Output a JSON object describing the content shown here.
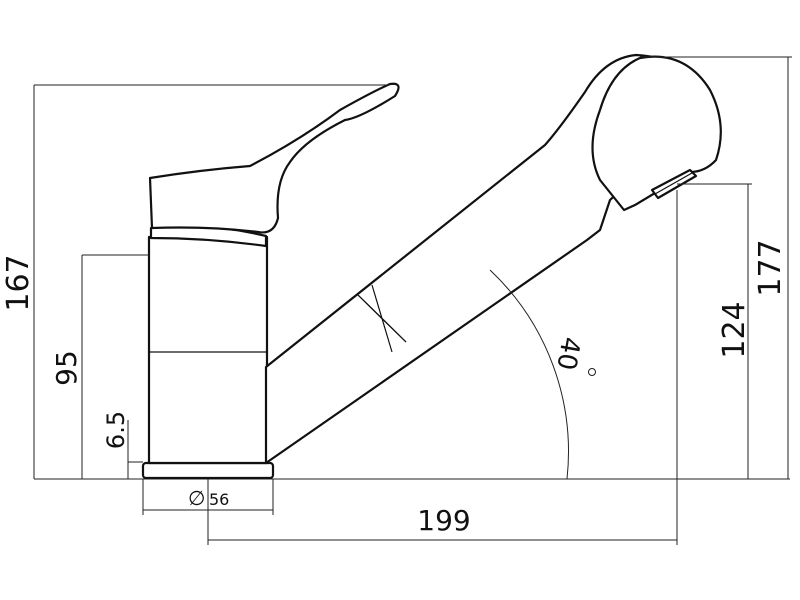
{
  "drawing": {
    "dimensions": {
      "overall_height": "167",
      "spout_height": "177",
      "outlet_height": "124",
      "body_height": "95",
      "base_thickness": "6.5",
      "base_diameter": "56",
      "diameter_symbol": "∅",
      "reach": "199",
      "spout_angle": "40",
      "degree_symbol": "°"
    }
  }
}
